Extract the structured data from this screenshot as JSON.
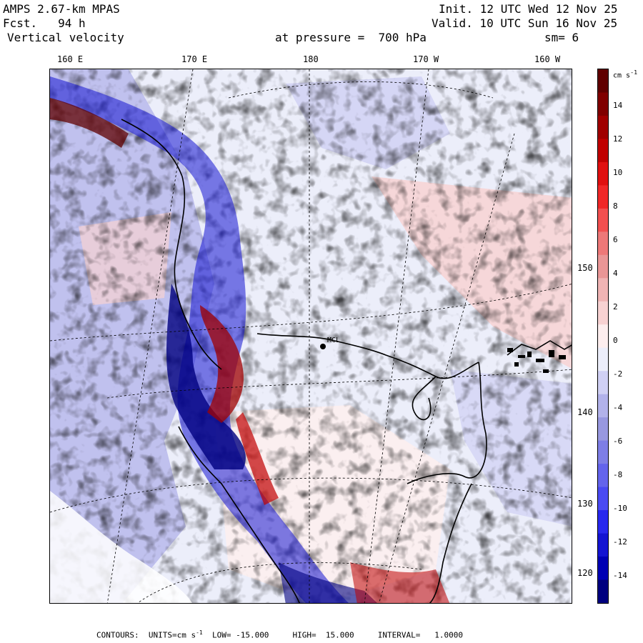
{
  "header": {
    "model": "AMPS 2.67-km MPAS",
    "forecast": "Fcst.   94 h",
    "variable": "Vertical velocity",
    "init": "Init. 12 UTC Wed 12 Nov 25",
    "valid": "Valid. 10 UTC Sun 16 Nov 25",
    "level": "at pressure =  700 hPa",
    "smoothing": "sm= 6"
  },
  "map": {
    "lon_labels": [
      "160 E",
      "170 E",
      "180",
      "170 W",
      "160 W"
    ],
    "lat_labels": [
      "150 W",
      "140 W",
      "130 W",
      "120 W"
    ],
    "station": "MCL"
  },
  "colorbar": {
    "unit": "cm s",
    "unit_exp": "-1",
    "ticks": [
      "14",
      "12",
      "10",
      "8",
      "6",
      "4",
      "2",
      "0",
      "-2",
      "-4",
      "-6",
      "-8",
      "-10",
      "-12",
      "-14"
    ],
    "colors": [
      "#00007f",
      "#0000b4",
      "#1414d2",
      "#2828ee",
      "#4a4af2",
      "#6464ec",
      "#7e7ee6",
      "#9898e0",
      "#b2b2ea",
      "#d0d0f4",
      "#eceefa",
      "#fdeeee",
      "#f8d2d2",
      "#f0b4b4",
      "#ea9696",
      "#ee7878",
      "#f25050",
      "#f02828",
      "#e01010",
      "#c00000",
      "#a00000",
      "#800000",
      "#600000"
    ]
  },
  "footer": {
    "text": "CONTOURS:  UNITS=cm s",
    "exp": "-1",
    "rest": "  LOW= -15.000     HIGH=  15.000     INTERVAL=   1.0000"
  }
}
